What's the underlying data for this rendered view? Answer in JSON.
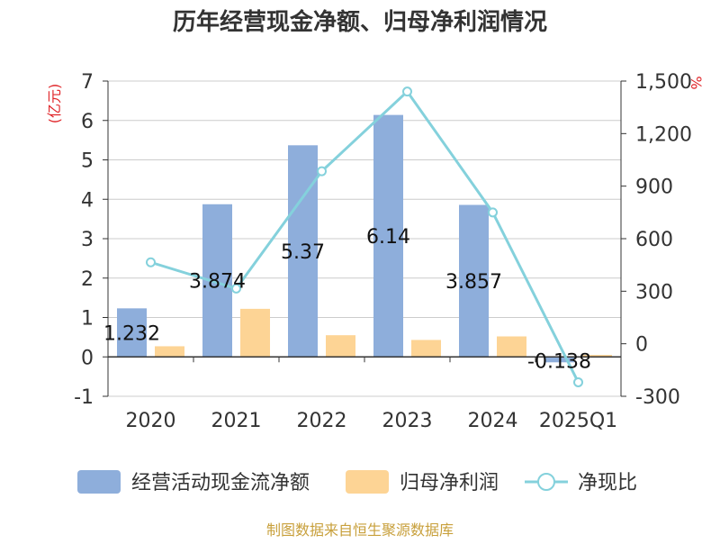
{
  "chart_data": {
    "type": "bar",
    "title": "历年经营现金净额、归母净利润情况",
    "categories": [
      "2020",
      "2021",
      "2022",
      "2023",
      "2024",
      "2025Q1"
    ],
    "left_axis": {
      "unit": "(亿元)",
      "range": [
        -1,
        7
      ],
      "ticks": [
        "-1",
        "0",
        "1",
        "2",
        "3",
        "4",
        "5",
        "6",
        "7"
      ]
    },
    "right_axis": {
      "unit": "%",
      "range": [
        -300,
        1500
      ],
      "ticks": [
        "-300",
        "0",
        "300",
        "600",
        "900",
        "1,200",
        "1,500"
      ]
    },
    "series": [
      {
        "name": "经营活动现金流净额",
        "type": "bar",
        "axis": "left",
        "color": "#8eaedb",
        "values": [
          1.232,
          3.874,
          5.37,
          6.14,
          3.857,
          -0.138
        ],
        "labels": [
          "1.232",
          "3.874",
          "5.37",
          "6.14",
          "3.857",
          "-0.138"
        ]
      },
      {
        "name": "归母净利润",
        "type": "bar",
        "axis": "left",
        "color": "#fdd495",
        "values": [
          0.27,
          1.22,
          0.55,
          0.43,
          0.52,
          0.05
        ]
      },
      {
        "name": "净现比",
        "type": "line",
        "axis": "right",
        "color": "#84d1dc",
        "values": [
          465,
          315,
          985,
          1440,
          750,
          -220
        ]
      }
    ],
    "grid": true,
    "legend": "bottom"
  },
  "source": "制图数据来自恒生聚源数据库"
}
